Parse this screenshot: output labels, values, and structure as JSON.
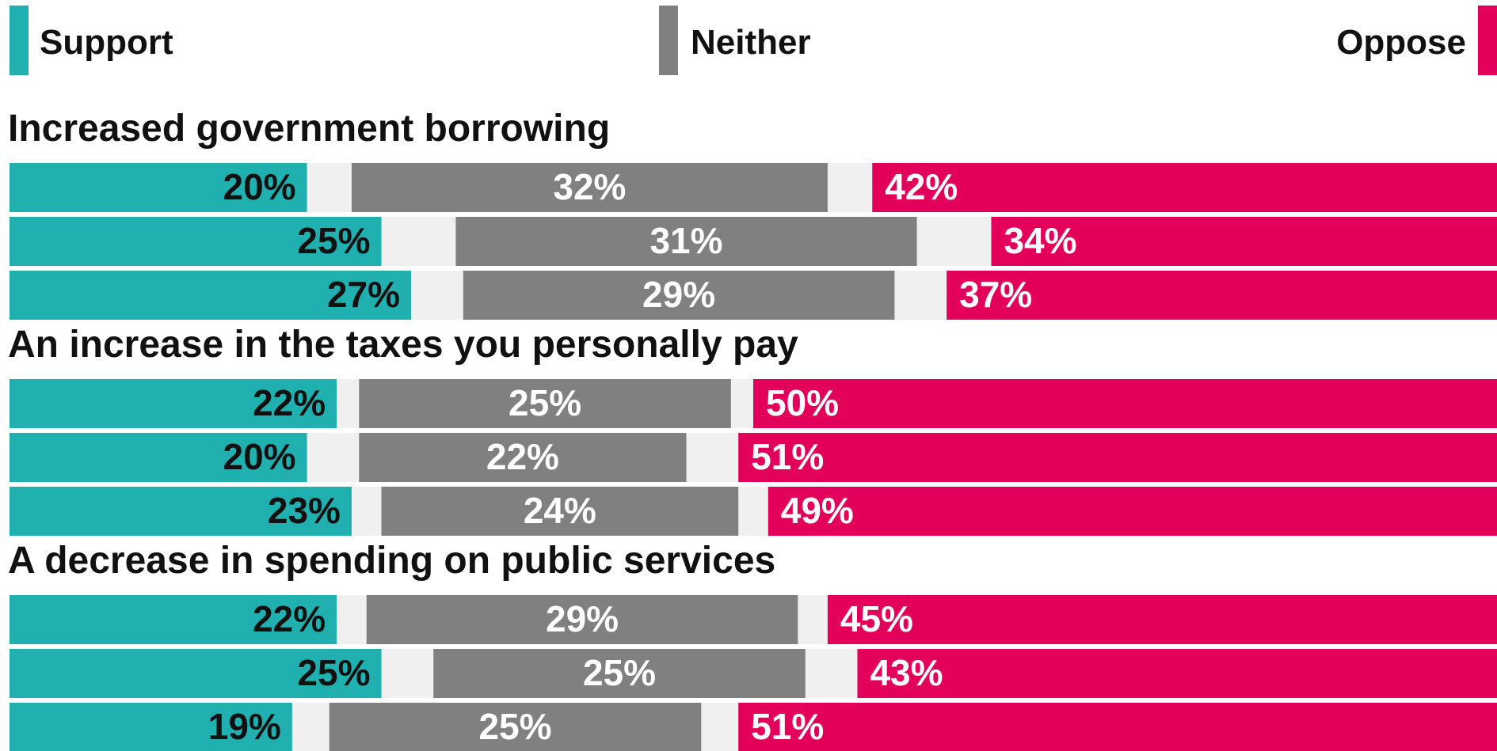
{
  "chart_data": {
    "type": "bar",
    "stacked": true,
    "orientation": "horizontal",
    "legend": [
      {
        "name": "Support",
        "color": "#20B0B0"
      },
      {
        "name": "Neither",
        "color": "#808080"
      },
      {
        "name": "Oppose",
        "color": "#E3005A"
      }
    ],
    "gap_color": "#F0F0F0",
    "groups": [
      {
        "title": "Increased government borrowing",
        "rows": [
          {
            "support": 20,
            "neither": 32,
            "oppose": 42
          },
          {
            "support": 25,
            "neither": 31,
            "oppose": 34
          },
          {
            "support": 27,
            "neither": 29,
            "oppose": 37
          }
        ]
      },
      {
        "title": "An increase in the taxes you personally pay",
        "rows": [
          {
            "support": 22,
            "neither": 25,
            "oppose": 50
          },
          {
            "support": 20,
            "neither": 22,
            "oppose": 51
          },
          {
            "support": 23,
            "neither": 24,
            "oppose": 49
          }
        ]
      },
      {
        "title": "A decrease in spending on public services",
        "rows": [
          {
            "support": 22,
            "neither": 29,
            "oppose": 45
          },
          {
            "support": 25,
            "neither": 25,
            "oppose": 43
          },
          {
            "support": 19,
            "neither": 25,
            "oppose": 51
          }
        ]
      }
    ],
    "value_suffix": "%"
  }
}
